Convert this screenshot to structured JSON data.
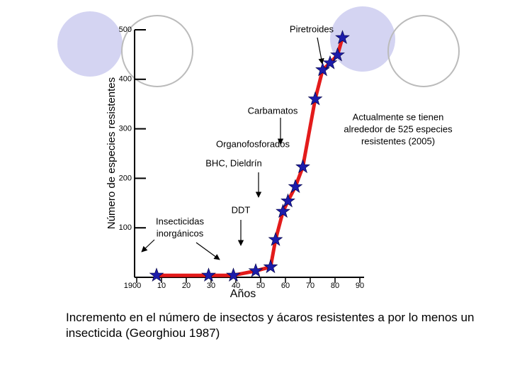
{
  "chart_data": {
    "type": "line",
    "xlabel": "Años",
    "ylabel": "Número de especies resistentes",
    "color": "#e31b1b",
    "marker_color": "#1c1caa",
    "x": [
      1908,
      1929,
      1939,
      1948,
      1954,
      1956,
      1959,
      1961,
      1964,
      1967,
      1972,
      1975,
      1978,
      1981,
      1983
    ],
    "values": [
      4,
      4,
      4,
      13,
      21,
      76,
      133,
      154,
      183,
      223,
      360,
      419,
      433,
      449,
      484
    ],
    "xlim": [
      1900,
      1990
    ],
    "xticks": [
      1900,
      {
        "value": 1910,
        "label": "10"
      },
      {
        "value": 1920,
        "label": "20"
      },
      {
        "value": 1930,
        "label": "30"
      },
      {
        "value": 1940,
        "label": "40"
      },
      {
        "value": 1950,
        "label": "50"
      },
      {
        "value": 1960,
        "label": "60"
      },
      {
        "value": 1970,
        "label": "70"
      },
      {
        "value": 1980,
        "label": "80"
      },
      {
        "value": 1990,
        "label": "90"
      }
    ],
    "ylim": [
      0,
      500
    ],
    "yticks": [
      100,
      200,
      300,
      400,
      500
    ],
    "annotations": [
      {
        "text": [
          "Piretroides"
        ]
      },
      {
        "text": [
          "Carbamatos"
        ]
      },
      {
        "text": [
          "Organofosforados"
        ]
      },
      {
        "text": [
          "BHC, Dieldrín"
        ]
      },
      {
        "text": [
          "DDT"
        ]
      },
      {
        "text": [
          "Insecticidas",
          "inorgánicos"
        ]
      },
      {
        "text": [
          "Actualmente se tienen",
          "alrededor de 525 especies",
          "resistentes (2005)"
        ]
      }
    ],
    "caption": "Incremento en el número de insectos y ácaros resistentes a por lo menos un insecticida (Georghiou 1987)"
  }
}
